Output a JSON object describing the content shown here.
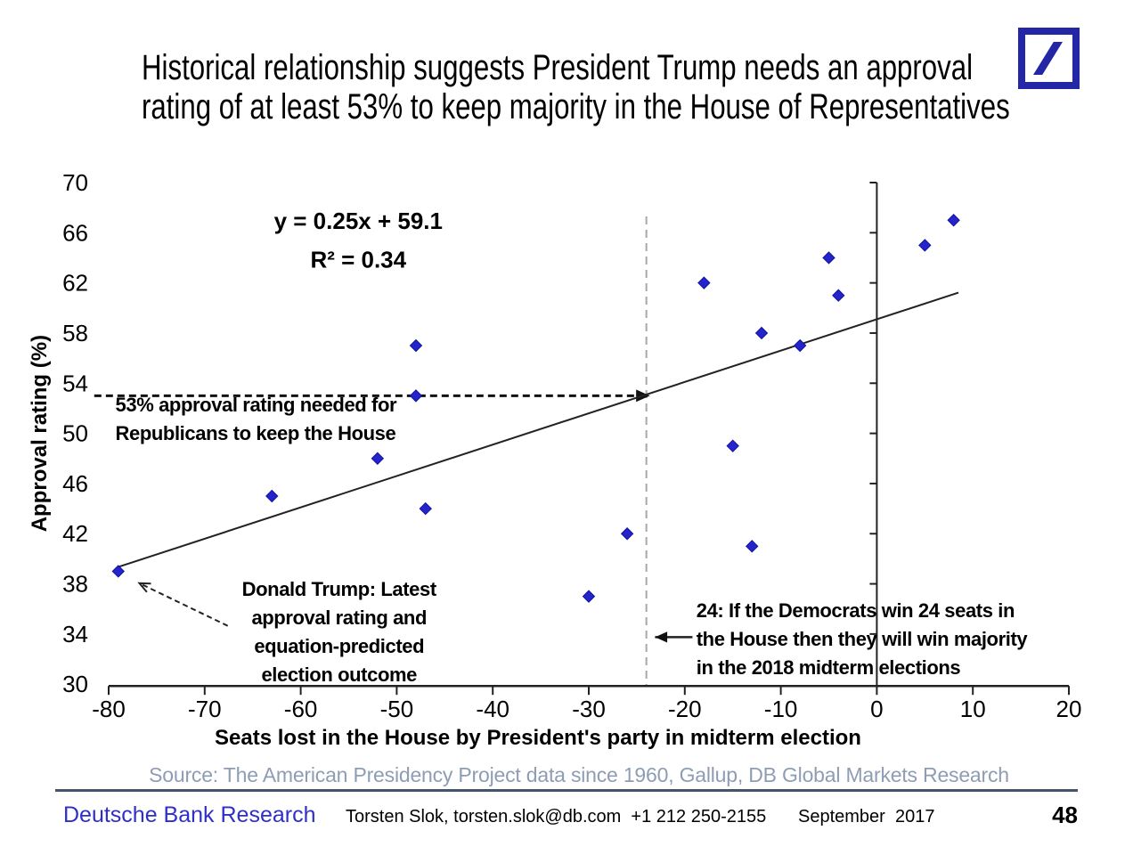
{
  "page": {
    "title_line1": "Historical relationship suggests President Trump needs an approval",
    "title_line2": "rating of at least 53% to keep majority in the House of Representatives"
  },
  "logo": {
    "name": "Deutsche Bank logo",
    "color": "#2327A6"
  },
  "chart_data": {
    "type": "scatter",
    "xlabel": "Seats lost in the House by President's party in midterm election",
    "ylabel": "Approval rating (%)",
    "xlim": [
      -80,
      20
    ],
    "ylim": [
      30,
      70
    ],
    "xticks": [
      -80,
      -70,
      -60,
      -50,
      -40,
      -30,
      -20,
      -10,
      0,
      10,
      20
    ],
    "yticks": [
      30,
      34,
      38,
      42,
      46,
      50,
      54,
      58,
      62,
      66,
      70
    ],
    "marker_color": "#2424CD",
    "marker_edge_color": "#1212A0",
    "points": [
      {
        "x": -79,
        "y": 39
      },
      {
        "x": -63,
        "y": 45
      },
      {
        "x": -52,
        "y": 48
      },
      {
        "x": -48,
        "y": 57
      },
      {
        "x": -48,
        "y": 53
      },
      {
        "x": -47,
        "y": 44
      },
      {
        "x": -30,
        "y": 37
      },
      {
        "x": -26,
        "y": 42
      },
      {
        "x": -18,
        "y": 62
      },
      {
        "x": -15,
        "y": 49
      },
      {
        "x": -13,
        "y": 41
      },
      {
        "x": -12,
        "y": 58
      },
      {
        "x": -8,
        "y": 57
      },
      {
        "x": -5,
        "y": 64
      },
      {
        "x": -4,
        "y": 61
      },
      {
        "x": 5,
        "y": 65
      },
      {
        "x": 8,
        "y": 67
      }
    ],
    "trendline": {
      "slope": 0.25,
      "intercept": 59.1,
      "x_start": -79,
      "x_end": 8.5
    },
    "threshold_line": {
      "y": 53,
      "x_start": -81.5,
      "x_end": -24
    },
    "vertical_dashed_line": {
      "x": -24,
      "y_start": 30,
      "y_end": 67.3,
      "color": "#A8A8A8"
    },
    "annotations": [
      {
        "id": "equation",
        "align": "center",
        "x": -54,
        "y": 66.3,
        "lines": [
          "y = 0.25x + 59.1",
          "R² = 0.34"
        ]
      },
      {
        "id": "threshold-note",
        "align": "left",
        "x": -79.3,
        "y": 51.75,
        "lines": [
          "53% approval rating needed for",
          "Republicans to keep the House"
        ]
      },
      {
        "id": "trump-note",
        "align": "center",
        "x": -56,
        "y": 37.05,
        "lines": [
          "Donald Trump: Latest",
          "approval rating and",
          "equation-predicted",
          "election outcome"
        ]
      },
      {
        "id": "dems-note",
        "align": "left",
        "x": -18.8,
        "y": 35.35,
        "lines": [
          "24: If the Democrats win 24 seats in",
          "the House then they will win majority",
          "in the 2018 midterm elections"
        ]
      }
    ],
    "arrows": [
      {
        "id": "trump-arrow",
        "style": "dashed",
        "from": {
          "x": -67.6,
          "y": 34.65
        },
        "to": {
          "x": -76.8,
          "y": 38.05
        }
      },
      {
        "id": "dems-arrow",
        "style": "solid",
        "from": {
          "x": -19.2,
          "y": 33.75
        },
        "to": {
          "x": -23.1,
          "y": 33.75
        }
      }
    ]
  },
  "footer": {
    "source": "Source: The American Presidency Project data since 1960, Gallup, DB Global Markets Research",
    "brand": "Deutsche Bank Research",
    "contact": "Torsten Slok, torsten.slok@db.com  +1 212 250-2155",
    "date": "September  2017",
    "page_number": "48"
  }
}
